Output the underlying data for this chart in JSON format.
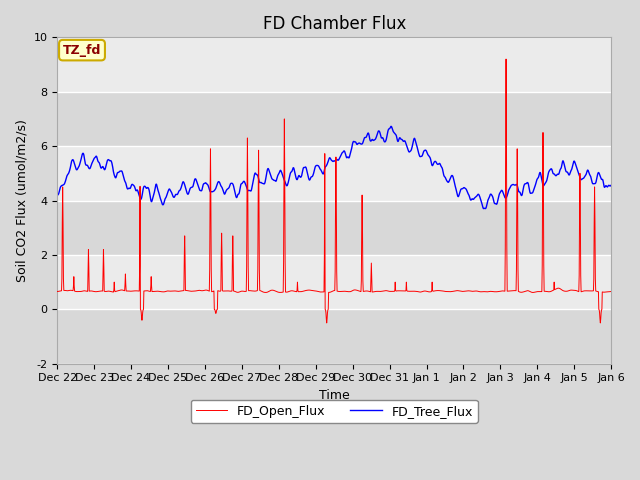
{
  "title": "FD Chamber Flux",
  "xlabel": "Time",
  "ylabel": "Soil CO2 Flux (umol/m2/s)",
  "ylim": [
    -2,
    10
  ],
  "yticks": [
    -2,
    0,
    2,
    4,
    6,
    8,
    10
  ],
  "annotation_text": "TZ_fd",
  "annotation_color": "#8b0000",
  "annotation_bg": "#ffffcc",
  "annotation_border": "#ccaa00",
  "open_flux_color": "red",
  "tree_flux_color": "blue",
  "open_flux_label": "FD_Open_Flux",
  "tree_flux_label": "FD_Tree_Flux",
  "fig_bg_color": "#d9d9d9",
  "plot_bg_color": "#e8e8e8",
  "band_light": "#ebebeb",
  "band_dark": "#d8d8d8",
  "grid_color": "white",
  "n_points": 1440,
  "x_tick_labels": [
    "Dec 22",
    "Dec 23",
    "Dec 24",
    "Dec 25",
    "Dec 26",
    "Dec 27",
    "Dec 28",
    "Dec 29",
    "Dec 30",
    "Dec 31",
    "Jan 1",
    "Jan 2",
    "Jan 3",
    "Jan 4",
    "Jan 5",
    "Jan 6"
  ],
  "title_fontsize": 12,
  "axis_fontsize": 9,
  "tick_fontsize": 8,
  "legend_fontsize": 9
}
